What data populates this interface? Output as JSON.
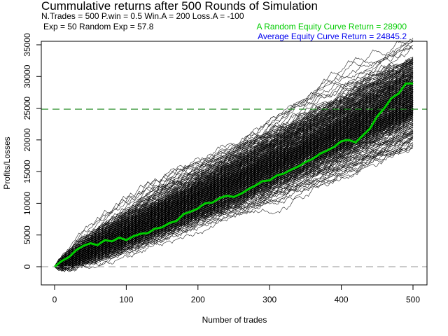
{
  "chart_data": {
    "type": "line",
    "title": "Cummulative returns after 500 Rounds of Simulation",
    "params_line1": "N.Trades =  500 P.win =  0.5  Win.A =  200  Loss.A =  -100",
    "params_line2": "Exp =  50  Random Exp =  57.8",
    "annotation_random": "A Random Equity Curve Return =  28900",
    "annotation_average": "Average Equity Curve Return =  24845.2",
    "xlabel": "Number of trades",
    "ylabel": "Profits/Losses",
    "xlim": [
      0,
      500
    ],
    "ylim": [
      0,
      35000
    ],
    "xticks": [
      0,
      100,
      200,
      300,
      400,
      500
    ],
    "yticks": [
      0,
      5000,
      10000,
      15000,
      20000,
      25000,
      30000,
      35000
    ],
    "n_trades": 500,
    "n_simulations": 500,
    "p_win": 0.5,
    "win_amount": 200,
    "loss_amount": -100,
    "average_return": 24845.2,
    "zero_line": 0,
    "colors": {
      "simulations": "#000000",
      "random_curve": "#00cc00",
      "average_line": "#228b22",
      "zero_line": "#aaaaaa",
      "annotation_random": "#00cc00",
      "annotation_average": "#0000ee"
    },
    "series": [
      {
        "name": "random-equity-curve",
        "x": [
          0,
          10,
          20,
          30,
          40,
          50,
          60,
          70,
          80,
          90,
          100,
          110,
          120,
          130,
          140,
          150,
          160,
          170,
          180,
          190,
          200,
          210,
          220,
          230,
          240,
          250,
          260,
          270,
          280,
          290,
          300,
          310,
          320,
          330,
          340,
          350,
          360,
          370,
          380,
          390,
          400,
          410,
          420,
          430,
          440,
          450,
          460,
          470,
          480,
          490,
          500
        ],
        "y": [
          0,
          900,
          1500,
          2600,
          3300,
          3700,
          3400,
          4200,
          4000,
          4600,
          4200,
          4800,
          5200,
          5300,
          6000,
          6200,
          6900,
          7200,
          8300,
          8700,
          9200,
          10000,
          10100,
          10800,
          11200,
          11000,
          11500,
          12200,
          12800,
          13500,
          13600,
          14400,
          14700,
          15300,
          15800,
          16500,
          17000,
          17800,
          18300,
          18900,
          19800,
          20000,
          19600,
          20700,
          21800,
          23700,
          25000,
          26600,
          27300,
          28900,
          28900
        ]
      }
    ]
  }
}
